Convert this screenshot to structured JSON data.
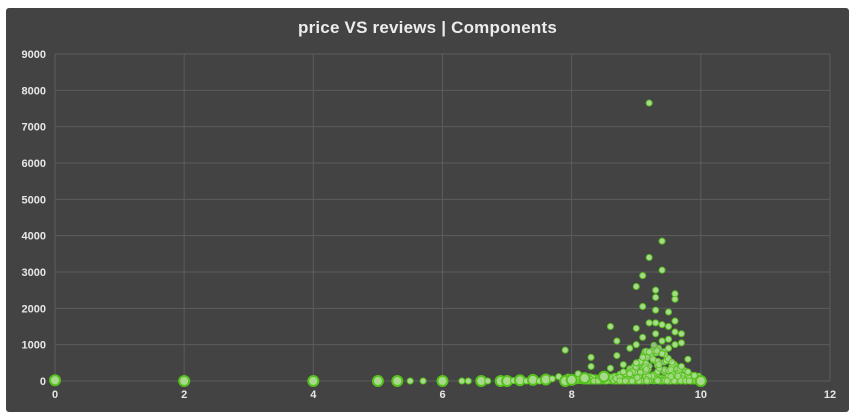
{
  "chart_data": {
    "type": "scatter",
    "title": "price VS reviews | Components",
    "xlabel": "",
    "ylabel": "",
    "xlim": [
      0,
      12
    ],
    "ylim": [
      0,
      9000
    ],
    "x_ticks": [
      0,
      2,
      4,
      6,
      8,
      10,
      12
    ],
    "y_ticks": [
      0,
      1000,
      2000,
      3000,
      4000,
      5000,
      6000,
      7000,
      8000,
      9000
    ],
    "grid": true,
    "legend": "none",
    "colors": {
      "background": "#434343",
      "grid": "#5c5c5c",
      "point_fill": "#a9d98c",
      "point_stroke": "#55c21b"
    },
    "series": [
      {
        "points": [
          [
            0,
            20,
            1
          ],
          [
            2,
            0,
            1
          ],
          [
            4,
            0,
            1
          ],
          [
            5,
            0,
            1
          ],
          [
            5.3,
            0,
            1
          ],
          [
            5.5,
            0,
            0
          ],
          [
            5.7,
            0,
            0
          ],
          [
            6,
            0,
            1
          ],
          [
            6.3,
            0,
            0
          ],
          [
            6.4,
            0,
            0
          ],
          [
            6.6,
            0,
            1
          ],
          [
            6.7,
            0,
            0
          ],
          [
            6.9,
            0,
            1
          ],
          [
            7,
            0,
            1
          ],
          [
            7.1,
            10,
            0
          ],
          [
            7.2,
            20,
            1
          ],
          [
            7.3,
            0,
            0
          ],
          [
            7.4,
            30,
            1
          ],
          [
            7.5,
            0,
            0
          ],
          [
            7.6,
            40,
            1
          ],
          [
            7.7,
            60,
            0
          ],
          [
            7.8,
            120,
            0
          ],
          [
            7.9,
            0,
            1
          ],
          [
            7.9,
            850,
            0
          ],
          [
            8,
            30,
            1
          ],
          [
            8.1,
            200,
            0
          ],
          [
            8.2,
            80,
            1
          ],
          [
            8.3,
            400,
            0
          ],
          [
            8.3,
            650,
            0
          ],
          [
            8.5,
            120,
            1
          ],
          [
            8.6,
            350,
            0
          ],
          [
            8.6,
            1500,
            0
          ],
          [
            8.7,
            700,
            0
          ],
          [
            8.7,
            1100,
            0
          ],
          [
            8.8,
            250,
            0
          ],
          [
            8.8,
            450,
            0
          ],
          [
            8.9,
            900,
            0
          ],
          [
            8.9,
            200,
            0
          ],
          [
            9.0,
            2600,
            0
          ],
          [
            9.0,
            1450,
            0
          ],
          [
            9.0,
            500,
            0
          ],
          [
            9.0,
            1000,
            0
          ],
          [
            9.1,
            2900,
            0
          ],
          [
            9.1,
            2050,
            0
          ],
          [
            9.1,
            1200,
            0
          ],
          [
            9.1,
            650,
            0
          ],
          [
            9.2,
            7650,
            0
          ],
          [
            9.2,
            3400,
            0
          ],
          [
            9.2,
            1600,
            0
          ],
          [
            9.2,
            800,
            0
          ],
          [
            9.3,
            2500,
            0
          ],
          [
            9.3,
            2300,
            0
          ],
          [
            9.3,
            1950,
            0
          ],
          [
            9.3,
            1600,
            0
          ],
          [
            9.3,
            1300,
            0
          ],
          [
            9.4,
            3850,
            0
          ],
          [
            9.4,
            3050,
            0
          ],
          [
            9.4,
            1550,
            0
          ],
          [
            9.4,
            1100,
            0
          ],
          [
            9.4,
            750,
            0
          ],
          [
            9.5,
            1900,
            0
          ],
          [
            9.5,
            1500,
            0
          ],
          [
            9.5,
            1150,
            0
          ],
          [
            9.5,
            900,
            0
          ],
          [
            9.6,
            2400,
            0
          ],
          [
            9.6,
            2250,
            0
          ],
          [
            9.6,
            1650,
            0
          ],
          [
            9.6,
            1350,
            0
          ],
          [
            9.6,
            1000,
            0
          ],
          [
            9.7,
            1300,
            0
          ],
          [
            9.7,
            1050,
            0
          ],
          [
            9.7,
            400,
            0
          ],
          [
            9.8,
            600,
            0
          ],
          [
            9.8,
            250,
            0
          ],
          [
            9.9,
            150,
            0
          ],
          [
            10,
            0,
            1
          ]
        ]
      }
    ]
  }
}
